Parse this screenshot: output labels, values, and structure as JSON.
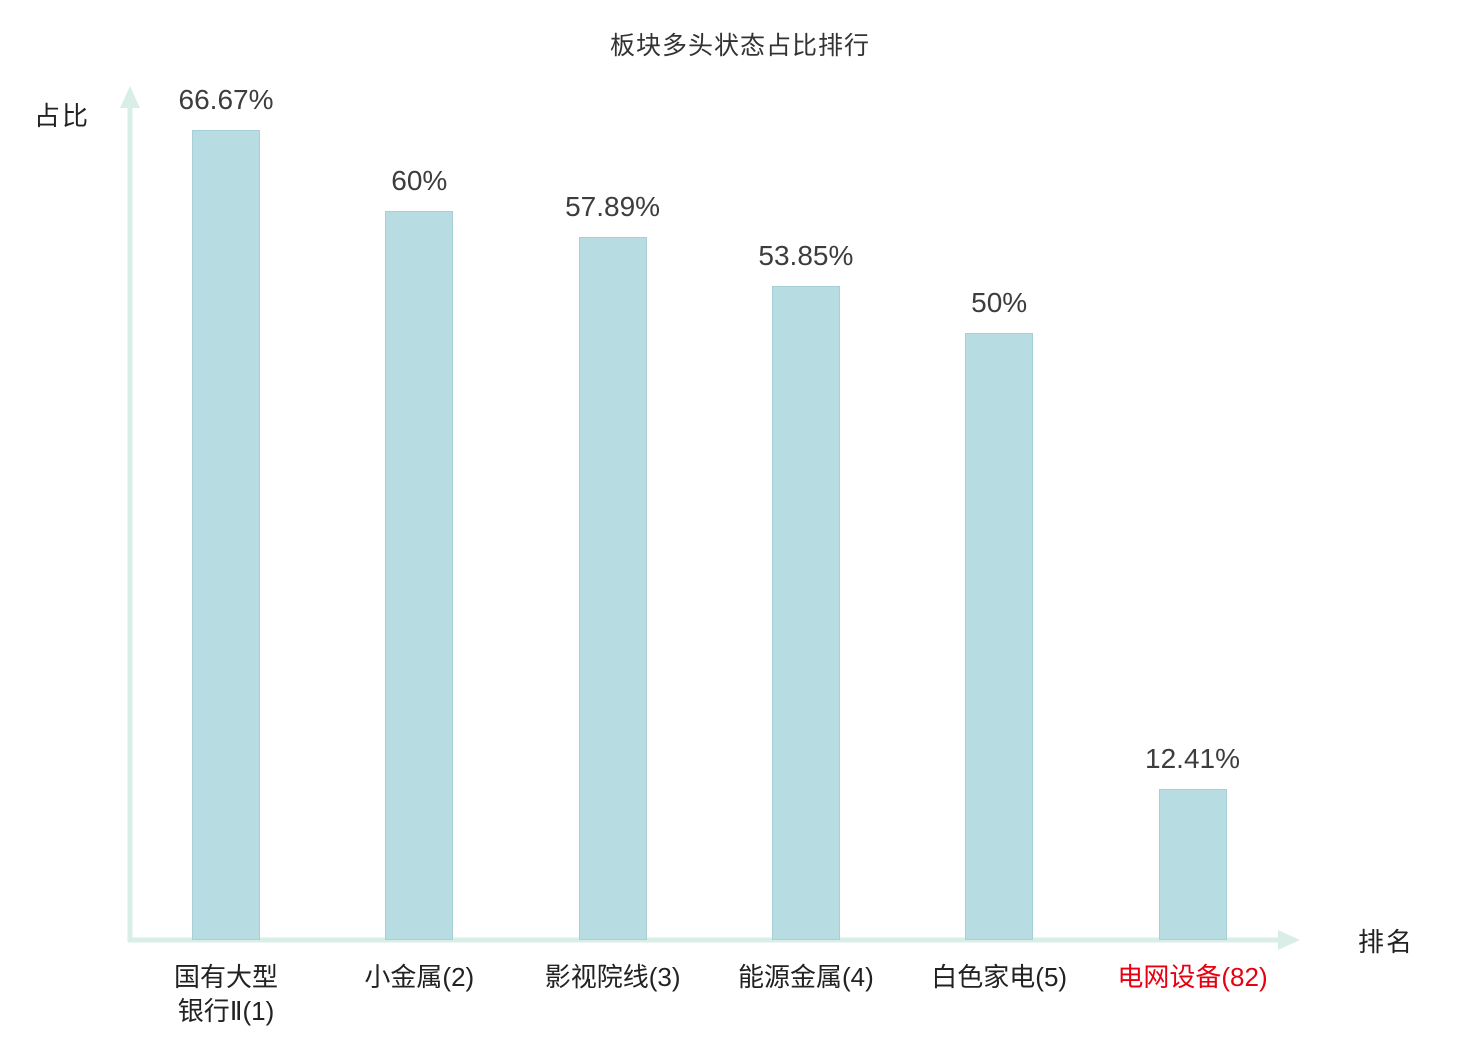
{
  "chart_data": {
    "type": "bar",
    "title": "板块多头状态占比排行",
    "xlabel": "排名",
    "ylabel": "占比",
    "categories": [
      "国有大型\n银行Ⅱ(1)",
      "小金属(2)",
      "影视院线(3)",
      "能源金属(4)",
      "白色家电(5)",
      "电网设备(82)"
    ],
    "values": [
      66.67,
      60,
      57.89,
      53.85,
      50,
      12.41
    ],
    "value_labels": [
      "66.67%",
      "60%",
      "57.89%",
      "53.85%",
      "50%",
      "12.41%"
    ],
    "highlight_index": 5,
    "ylim": [
      0,
      70
    ],
    "grid": false,
    "legend": "none",
    "bar_color": "#b7dce1",
    "bar_border_color": "#a6cfd7",
    "axis_color": "#d8eee7",
    "highlight_label_color": "#e60012"
  }
}
